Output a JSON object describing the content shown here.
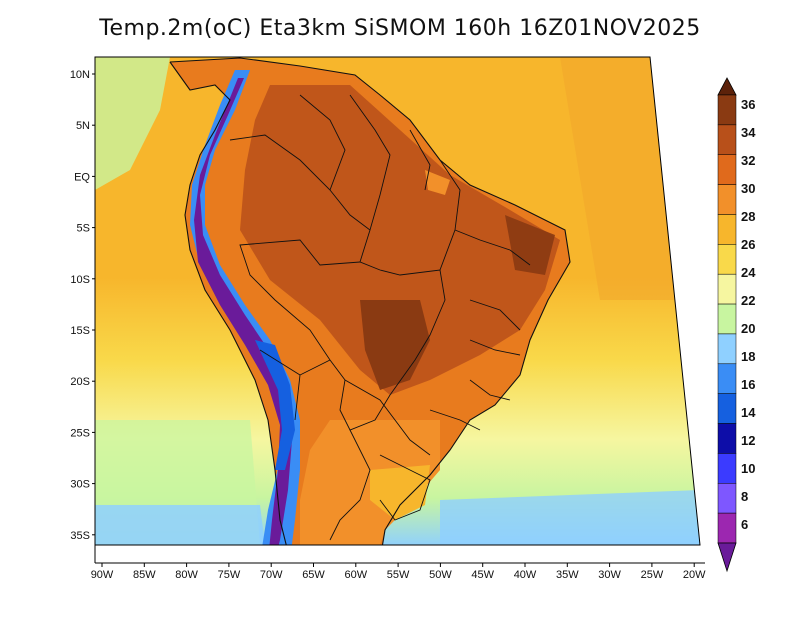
{
  "title": "Temp.2m(oC) Eta3km SiSMOM 160h 16Z01NOV2025",
  "lat_labels": [
    "10N",
    "5N",
    "EQ",
    "5S",
    "10S",
    "15S",
    "20S",
    "25S",
    "30S",
    "35S"
  ],
  "lon_labels": [
    "90W",
    "85W",
    "80W",
    "75W",
    "70W",
    "65W",
    "60W",
    "55W",
    "50W",
    "45W",
    "40W",
    "35W",
    "30W",
    "25W",
    "20W"
  ],
  "colorbar": {
    "labels": [
      "6",
      "8",
      "10",
      "12",
      "14",
      "16",
      "18",
      "20",
      "22",
      "24",
      "26",
      "28",
      "30",
      "32",
      "34",
      "36"
    ],
    "colors": [
      "#6a1b9a",
      "#9c27b0",
      "#7e57ff",
      "#3b3bff",
      "#0d0da8",
      "#1560e0",
      "#3a8df5",
      "#8fd0ff",
      "#c8f5a0",
      "#f6f6a0",
      "#f9d94a",
      "#f7b62c",
      "#f2902a",
      "#e06a1c",
      "#b8501a",
      "#8a3a12",
      "#5c220a"
    ]
  }
}
